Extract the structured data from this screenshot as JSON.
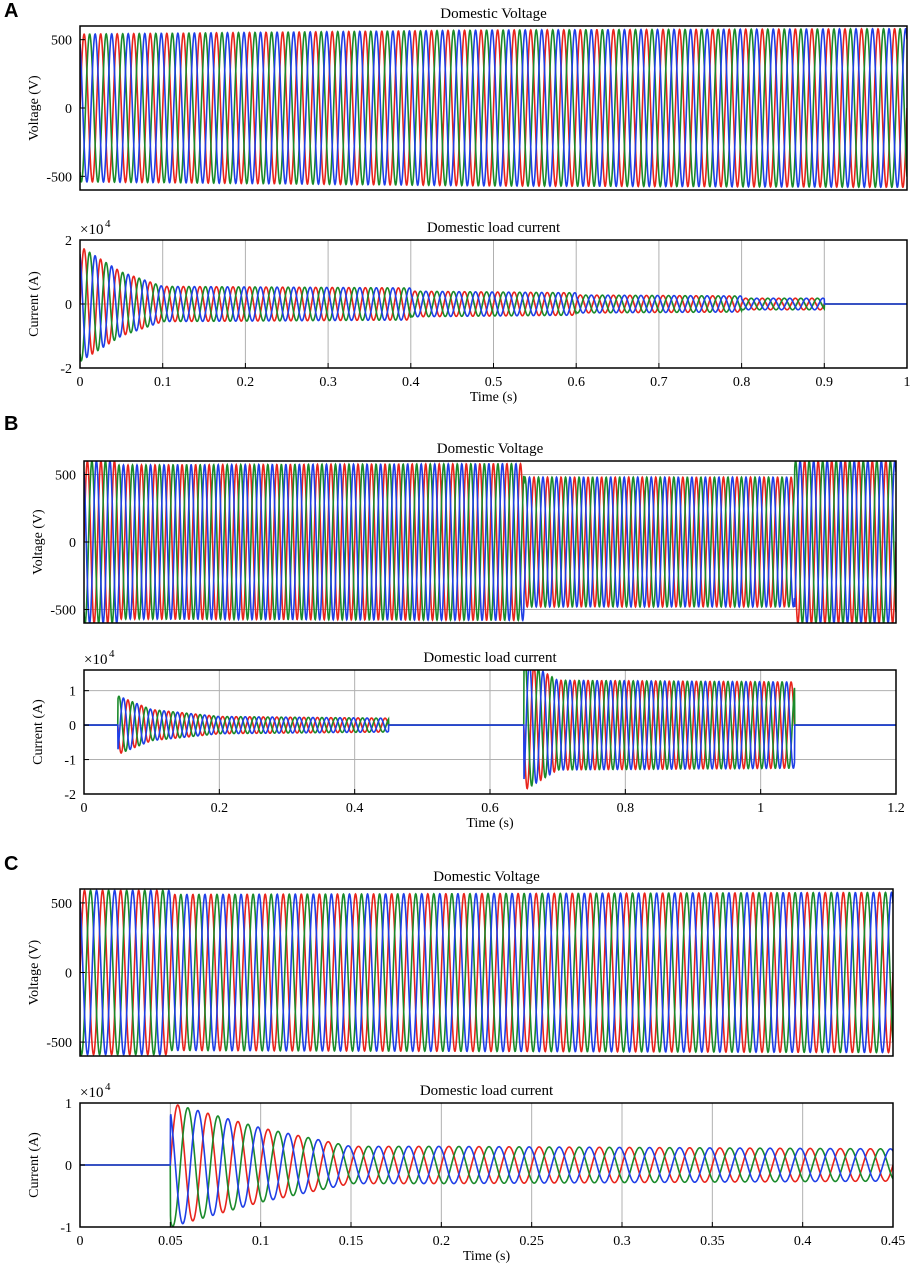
{
  "colors": {
    "red": "#e8241c",
    "green": "#1a8a2a",
    "blue": "#1f3fe6",
    "grid": "#b0b0b0",
    "frame": "#000000"
  },
  "chart_data": [
    {
      "panel": "A",
      "type": "line",
      "title": "Domestic Voltage",
      "xlabel": "",
      "ylabel": "Voltage (V)",
      "xlim": [
        0,
        1
      ],
      "ylim": [
        -600,
        600
      ],
      "yticks": [
        "500",
        "0",
        "-500"
      ],
      "grid": false,
      "frequency_hz": 50,
      "series": [
        {
          "color": "red",
          "phase_deg": 0,
          "amplitude": [
            [
              0,
              540
            ],
            [
              0.5,
              570
            ],
            [
              1,
              580
            ]
          ]
        },
        {
          "color": "green",
          "phase_deg": -120,
          "amplitude": [
            [
              0,
              540
            ],
            [
              0.5,
              570
            ],
            [
              1,
              580
            ]
          ]
        },
        {
          "color": "blue",
          "phase_deg": 120,
          "amplitude": [
            [
              0,
              540
            ],
            [
              0.5,
              570
            ],
            [
              1,
              580
            ]
          ]
        }
      ]
    },
    {
      "panel": "A",
      "type": "line",
      "title": "Domestic load current",
      "xlabel": "Time (s)",
      "ylabel": "Current (A)",
      "y_multiplier": "×10",
      "y_multiplier_exp": "4",
      "xlim": [
        0,
        1
      ],
      "ylim": [
        -2,
        2
      ],
      "xticks": [
        "0",
        "0.1",
        "0.2",
        "0.3",
        "0.4",
        "0.5",
        "0.6",
        "0.7",
        "0.8",
        "0.9",
        "1"
      ],
      "yticks": [
        "2",
        "0",
        "-2"
      ],
      "grid": true,
      "frequency_hz": 50,
      "series": [
        {
          "color": "red",
          "phase_deg": 0
        },
        {
          "color": "green",
          "phase_deg": -120
        },
        {
          "color": "blue",
          "phase_deg": 120
        }
      ],
      "envelope": [
        [
          0,
          1.8
        ],
        [
          0.05,
          1.0
        ],
        [
          0.1,
          0.55
        ],
        [
          0.4,
          0.5
        ],
        [
          0.4001,
          0.4
        ],
        [
          0.6,
          0.35
        ],
        [
          0.6001,
          0.28
        ],
        [
          0.8,
          0.25
        ],
        [
          0.8001,
          0.18
        ],
        [
          0.9,
          0.18
        ],
        [
          0.9001,
          0
        ],
        [
          1,
          0
        ]
      ]
    },
    {
      "panel": "B",
      "type": "line",
      "title": "Domestic Voltage",
      "xlabel": "",
      "ylabel": "Voltage (V)",
      "xlim": [
        0,
        1.2
      ],
      "ylim": [
        -600,
        600
      ],
      "yticks": [
        "500",
        "0",
        "-500"
      ],
      "grid": true,
      "frequency_hz": 50,
      "series": [
        {
          "color": "red",
          "phase_deg": 0
        },
        {
          "color": "green",
          "phase_deg": -120
        },
        {
          "color": "blue",
          "phase_deg": 120
        }
      ],
      "envelope": [
        [
          0,
          600
        ],
        [
          0.05,
          600
        ],
        [
          0.0501,
          570
        ],
        [
          0.65,
          580
        ],
        [
          0.6501,
          480
        ],
        [
          1.05,
          480
        ],
        [
          1.0501,
          600
        ],
        [
          1.2,
          600
        ]
      ]
    },
    {
      "panel": "B",
      "type": "line",
      "title": "Domestic load current",
      "xlabel": "Time (s)",
      "ylabel": "Current (A)",
      "y_multiplier": "×10",
      "y_multiplier_exp": "4",
      "xlim": [
        0,
        1.2
      ],
      "ylim": [
        -2,
        1.6
      ],
      "xticks": [
        "0",
        "0.2",
        "0.4",
        "0.6",
        "0.8",
        "1",
        "1.2"
      ],
      "yticks": [
        "1",
        "0",
        "-1",
        "-2"
      ],
      "grid": true,
      "frequency_hz": 50,
      "series": [
        {
          "color": "red",
          "phase_deg": 0
        },
        {
          "color": "green",
          "phase_deg": -120
        },
        {
          "color": "blue",
          "phase_deg": 120
        }
      ],
      "envelope": [
        [
          0,
          0
        ],
        [
          0.05,
          0
        ],
        [
          0.0501,
          0.85
        ],
        [
          0.1,
          0.45
        ],
        [
          0.2,
          0.25
        ],
        [
          0.45,
          0.2
        ],
        [
          0.4501,
          0
        ],
        [
          0.65,
          0
        ],
        [
          0.6501,
          1.9
        ],
        [
          0.7,
          1.3
        ],
        [
          1.05,
          1.25
        ],
        [
          1.0501,
          0
        ],
        [
          1.2,
          0
        ]
      ]
    },
    {
      "panel": "C",
      "type": "line",
      "title": "Domestic Voltage",
      "xlabel": "",
      "ylabel": "Voltage (V)",
      "xlim": [
        0,
        0.45
      ],
      "ylim": [
        -600,
        600
      ],
      "yticks": [
        "500",
        "0",
        "-500"
      ],
      "grid": true,
      "frequency_hz": 100,
      "series": [
        {
          "color": "red",
          "phase_deg": 0
        },
        {
          "color": "green",
          "phase_deg": -120
        },
        {
          "color": "blue",
          "phase_deg": 120
        }
      ],
      "envelope": [
        [
          0,
          590
        ],
        [
          0.05,
          590
        ],
        [
          0.0501,
          560
        ],
        [
          0.45,
          575
        ]
      ]
    },
    {
      "panel": "C",
      "type": "line",
      "title": "Domestic load current",
      "xlabel": "Time (s)",
      "ylabel": "Current (A)",
      "y_multiplier": "×10",
      "y_multiplier_exp": "4",
      "xlim": [
        0,
        0.45
      ],
      "ylim": [
        -1,
        1
      ],
      "xticks": [
        "0",
        "0.05",
        "0.1",
        "0.15",
        "0.2",
        "0.25",
        "0.3",
        "0.35",
        "0.4",
        "0.45"
      ],
      "yticks": [
        "1",
        "0",
        "-1"
      ],
      "grid": true,
      "frequency_hz": 60,
      "series": [
        {
          "color": "red",
          "phase_deg": 0
        },
        {
          "color": "green",
          "phase_deg": -120
        },
        {
          "color": "blue",
          "phase_deg": 120
        }
      ],
      "envelope": [
        [
          0,
          0
        ],
        [
          0.05,
          0
        ],
        [
          0.0501,
          1.0
        ],
        [
          0.1,
          0.6
        ],
        [
          0.15,
          0.3
        ],
        [
          0.2,
          0.3
        ],
        [
          0.45,
          0.26
        ]
      ]
    }
  ],
  "panel_labels": [
    "A",
    "B",
    "C"
  ]
}
